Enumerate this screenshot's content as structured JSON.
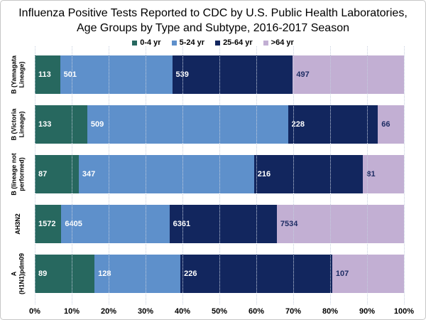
{
  "chart_data": {
    "type": "bar",
    "variant": "horizontal-100pct-stacked",
    "title": "Influenza Positive Tests Reported to CDC by U.S. Public Health Laboratories, Age Groups by Type and Subtype, 2016-2017 Season",
    "categories": [
      [
        "B (Yamagata",
        "Lineage)"
      ],
      [
        "B (Victoria",
        "Lineage)"
      ],
      [
        "B (lineage not",
        "performed)"
      ],
      [
        "AH3N2"
      ],
      [
        "A",
        "(H1N1)pdm09"
      ]
    ],
    "series": [
      {
        "name": "0-4 yr",
        "color": "#27685f",
        "label_style": "light",
        "values": [
          113,
          133,
          87,
          1572,
          89
        ]
      },
      {
        "name": "5-24 yr",
        "color": "#5e90cb",
        "label_style": "light",
        "values": [
          501,
          509,
          347,
          6405,
          128
        ]
      },
      {
        "name": "25-64 yr",
        "color": "#12265e",
        "label_style": "light",
        "values": [
          539,
          228,
          216,
          6361,
          226
        ]
      },
      {
        "name": ">64 yr",
        "color": "#c2afd3",
        "label_style": "dark",
        "values": [
          497,
          66,
          81,
          7534,
          107
        ]
      }
    ],
    "x_tick_labels": [
      "0%",
      "10%",
      "20%",
      "30%",
      "40%",
      "50%",
      "60%",
      "70%",
      "80%",
      "90%",
      "100%"
    ],
    "xlim": [
      0,
      100
    ],
    "grid": true,
    "grid_color": "#c6cfdf",
    "legend_position": "top",
    "value_label_light": "#ffffff",
    "value_label_dark": "#1e2d64"
  }
}
